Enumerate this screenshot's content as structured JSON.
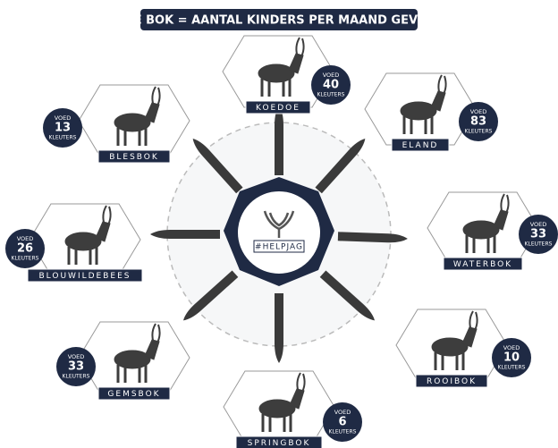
{
  "title": "TIPE BOK = AANTAL KINDERS PER MAAND GEVOED",
  "center_label": "#HELPJAG",
  "nodes": [
    {
      "label": "KOEDOE",
      "badge": [
        "VOED",
        "40",
        "KLEUTERS"
      ]
    },
    {
      "label": "ELAND",
      "badge": [
        "VOED",
        "83",
        "KLEUTERS"
      ]
    },
    {
      "label": "WATERBOK",
      "badge": [
        "VOED",
        "33",
        "KLEUTERS"
      ]
    },
    {
      "label": "ROOIBOK",
      "badge": [
        "VOED",
        "10",
        "KLEUTERS"
      ]
    },
    {
      "label": "SPRINGBOK",
      "badge": [
        "VOED",
        "6",
        "KLEUTERS"
      ]
    },
    {
      "label": "GEMSBOK",
      "badge": [
        "VOED",
        "33",
        "KLEUTERS"
      ]
    },
    {
      "label": "BLOUWILDEBEES",
      "badge": [
        "VOED",
        "26",
        "KLEUTERS"
      ]
    },
    {
      "label": "BLESBOK",
      "badge": [
        "VOED",
        "13",
        "KLEUTERS"
      ]
    }
  ]
}
